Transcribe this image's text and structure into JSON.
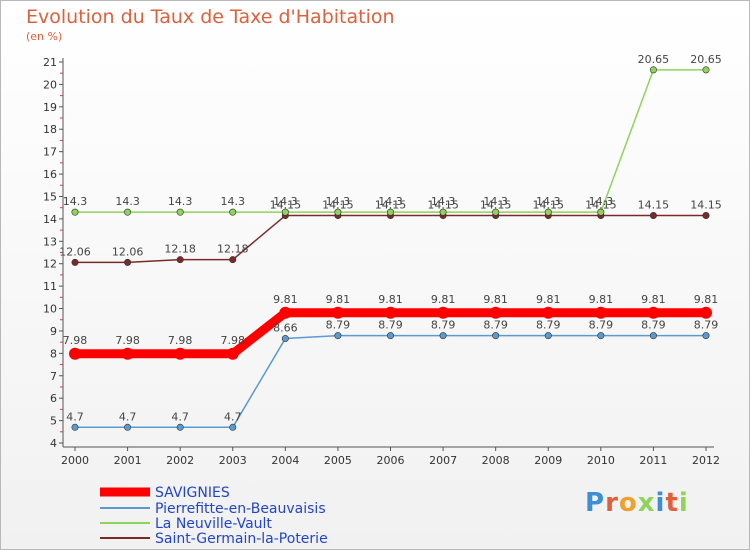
{
  "page": {
    "title": "Evolution du Taux de Taxe d'Habitation",
    "unit": "(en %)",
    "logo": "Proxiti"
  },
  "chart_data": {
    "type": "line",
    "title": "Evolution du Taux de Taxe d'Habitation",
    "ylabel": "(en %)",
    "xlabel": "",
    "x": [
      2000,
      2001,
      2002,
      2003,
      2004,
      2005,
      2006,
      2007,
      2008,
      2009,
      2010,
      2011,
      2012
    ],
    "ylim": [
      4,
      21
    ],
    "yticks": [
      4,
      5,
      6,
      7,
      8,
      9,
      10,
      11,
      12,
      13,
      14,
      15,
      16,
      17,
      18,
      19,
      20,
      21
    ],
    "grid": false,
    "legend_position": "bottom-left",
    "series": [
      {
        "name": "SAVIGNIES",
        "color": "#ff0000",
        "values": [
          7.98,
          7.98,
          7.98,
          7.98,
          9.81,
          9.81,
          9.81,
          9.81,
          9.81,
          9.81,
          9.81,
          9.81,
          9.81
        ],
        "labels": [
          "7.98",
          "7.98",
          "7.98",
          "7.98",
          "9.81",
          "9.81",
          "9.81",
          "9.81",
          "9.81",
          "9.81",
          "9.81",
          "9.81",
          "9.81"
        ]
      },
      {
        "name": "Pierrefitte-en-Beauvaisis",
        "color": "#5a9ad0",
        "values": [
          4.7,
          4.7,
          4.7,
          4.7,
          8.66,
          8.79,
          8.79,
          8.79,
          8.79,
          8.79,
          8.79,
          8.79,
          8.79
        ],
        "labels": [
          "4.7",
          "4.7",
          "4.7",
          "4.7",
          "8.66",
          "8.79",
          "8.79",
          "8.79",
          "8.79",
          "8.79",
          "8.79",
          "8.79",
          "8.79"
        ]
      },
      {
        "name": "La Neuville-Vault",
        "color": "#8fd45a",
        "values": [
          14.3,
          14.3,
          14.3,
          14.3,
          14.3,
          14.3,
          14.3,
          14.3,
          14.3,
          14.3,
          14.3,
          20.65,
          20.65
        ],
        "labels": [
          "14.3",
          "14.3",
          "14.3",
          "14.3",
          "14.3",
          "14.3",
          "14.3",
          "14.3",
          "14.3",
          "14.3",
          "14.3",
          "20.65",
          "20.65"
        ]
      },
      {
        "name": "Saint-Germain-la-Poterie",
        "color": "#7a2a2a",
        "values": [
          12.06,
          12.06,
          12.18,
          12.18,
          14.15,
          14.15,
          14.15,
          14.15,
          14.15,
          14.15,
          14.15,
          14.15,
          14.15
        ],
        "labels": [
          "12.06",
          "12.06",
          "12.18",
          "12.18",
          "14.15",
          "14.15",
          "14.15",
          "14.15",
          "14.15",
          "14.15",
          "14.15",
          "14.15",
          "14.15"
        ]
      }
    ],
    "legend_colors": {
      "savignies_text": "#2244cc",
      "others_text": "#2244cc"
    }
  }
}
